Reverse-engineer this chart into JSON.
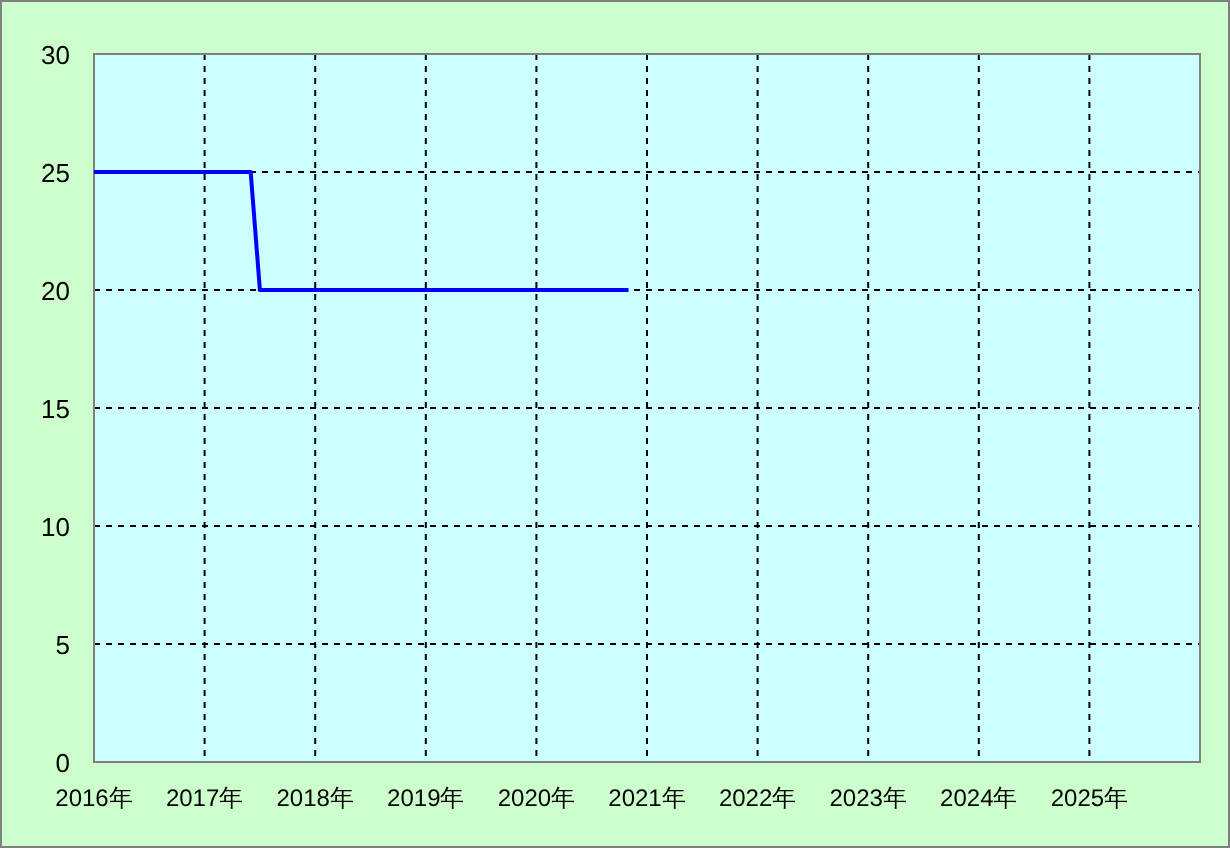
{
  "chart_data": {
    "type": "line",
    "x": [
      "2016-01",
      "2017-06",
      "2017-07",
      "2020-11"
    ],
    "series": [
      {
        "color": "#0000ff",
        "values": [
          25,
          25,
          20,
          20
        ]
      }
    ],
    "xlim": [
      "2016-01",
      "2026-01"
    ],
    "xticks": [
      {
        "value": "2016",
        "label": "2016年"
      },
      {
        "value": "2017",
        "label": "2017年"
      },
      {
        "value": "2018",
        "label": "2018年"
      },
      {
        "value": "2019",
        "label": "2019年"
      },
      {
        "value": "2020",
        "label": "2020年"
      },
      {
        "value": "2021",
        "label": "2021年"
      },
      {
        "value": "2022",
        "label": "2022年"
      },
      {
        "value": "2023",
        "label": "2023年"
      },
      {
        "value": "2024",
        "label": "2024年"
      },
      {
        "value": "2025",
        "label": "2025年"
      }
    ],
    "ylim": [
      0,
      30
    ],
    "yticks": [
      0,
      5,
      10,
      15,
      20,
      25,
      30
    ],
    "grid": true
  }
}
